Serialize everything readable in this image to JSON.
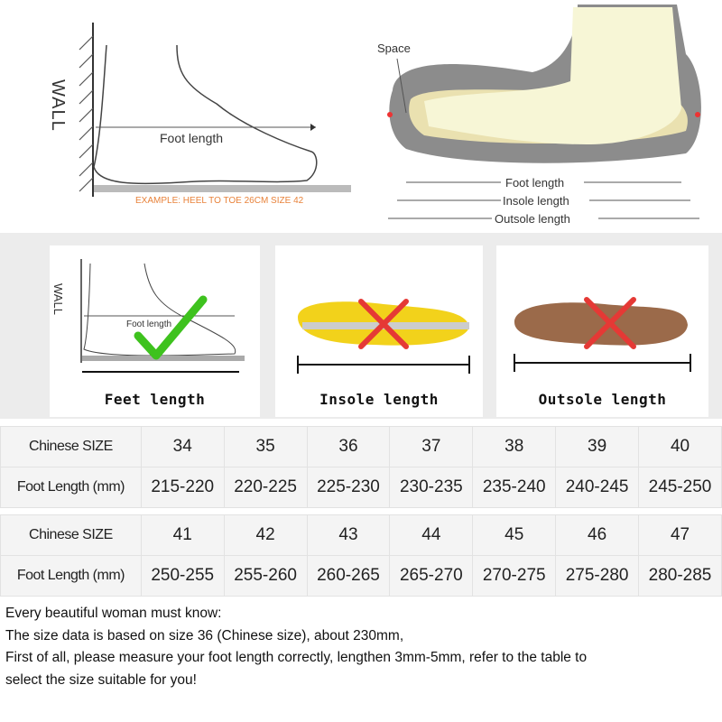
{
  "top_left_diagram": {
    "wall_label": "WALL",
    "foot_length_label": "Foot length",
    "example_text": "EXAMPLE: HEEL TO TOE 26CM SIZE 42"
  },
  "top_right_diagram": {
    "space_label": "Space",
    "foot_length_label": "Foot length",
    "insole_length_label": "Insole length",
    "outsole_length_label": "Outsole length"
  },
  "panels": [
    {
      "caption": "Feet length",
      "wall_label": "WALL",
      "foot_label": "Foot length",
      "mark": "check",
      "mark_color": "#3ec21e"
    },
    {
      "caption": "Insole length",
      "mark": "cross",
      "mark_color": "#e53935"
    },
    {
      "caption": "Outsole length",
      "mark": "cross",
      "mark_color": "#e53935"
    }
  ],
  "size_table_1": {
    "row_labels": [
      "Chinese SIZE",
      "Foot Length (mm)"
    ],
    "sizes": [
      "34",
      "35",
      "36",
      "37",
      "38",
      "39",
      "40"
    ],
    "lengths": [
      "215-220",
      "220-225",
      "225-230",
      "230-235",
      "235-240",
      "240-245",
      "245-250"
    ]
  },
  "size_table_2": {
    "row_labels": [
      "Chinese SIZE",
      "Foot Length (mm)"
    ],
    "sizes": [
      "41",
      "42",
      "43",
      "44",
      "45",
      "46",
      "47"
    ],
    "lengths": [
      "250-255",
      "255-260",
      "260-265",
      "265-270",
      "270-275",
      "275-280",
      "280-285"
    ]
  },
  "notes": [
    "Every beautiful woman must know:",
    "The size data is based on size 36 (Chinese size), about 230mm,",
    "First of all, please measure your foot length correctly, lengthen 3mm-5mm, refer to the table to",
    "select the size suitable for you!"
  ]
}
